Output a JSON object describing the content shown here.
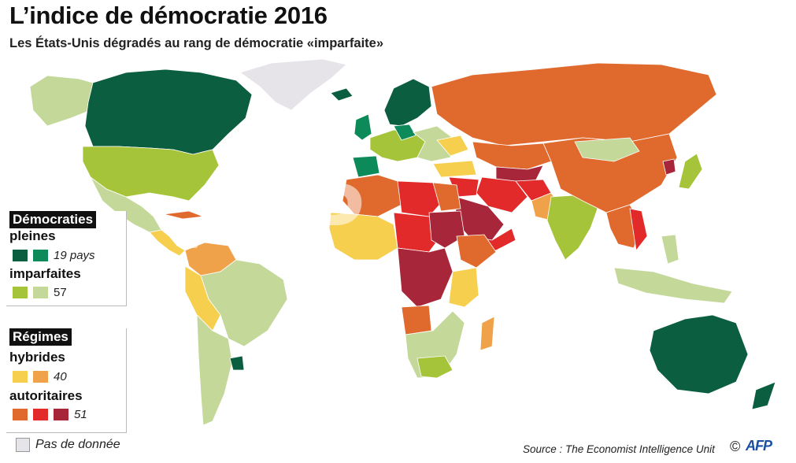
{
  "title": "L’indice de démocratie 2016",
  "subtitle": "Les États-Unis dégradés au rang de démocratie «imparfaite»",
  "colors": {
    "ocean": "#ffffff",
    "pleine_dark": "#0b5e3f",
    "pleine_light": "#0c8a5a",
    "imparfaite_dark": "#a6c43a",
    "imparfaite_light": "#c4d89a",
    "hybride_light": "#f6cf4f",
    "hybride_dark": "#f0a24a",
    "autoritaire_orange": "#e06a2e",
    "autoritaire_red": "#e32a2a",
    "autoritaire_dark": "#a8263a",
    "no_data": "#e6e4e8"
  },
  "legend_democraties": {
    "header": "Démocraties",
    "pleines_label": "pleines",
    "pleines_count": "19 pays",
    "imparfaites_label": "imparfaites",
    "imparfaites_count": "57"
  },
  "legend_regimes": {
    "header": "Régimes",
    "hybrides_label": "hybrides",
    "hybrides_count": "40",
    "autoritaires_label": "autoritaires",
    "autoritaires_count": "51"
  },
  "no_data_label": "Pas de donnée",
  "source": "Source : The Economist Intelligence Unit",
  "copyright_symbol": "©",
  "afp_logo_text": "AFP",
  "watermark_text": "AFP"
}
